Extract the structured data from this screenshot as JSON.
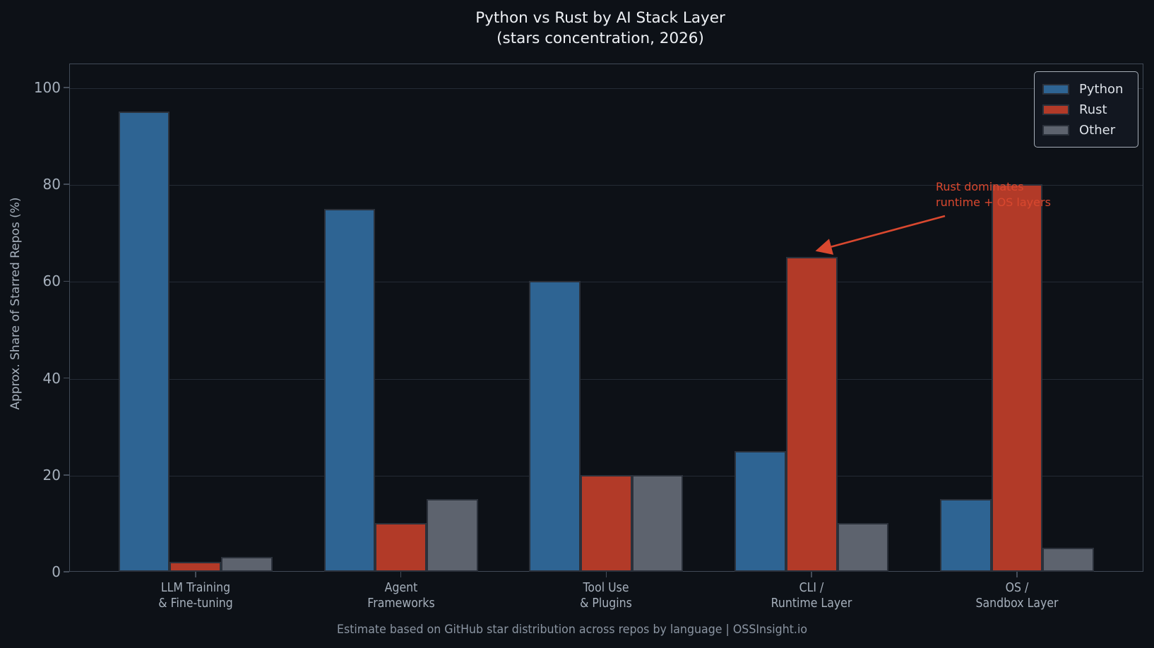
{
  "chart_data": {
    "type": "bar",
    "title": "Python vs Rust by AI Stack Layer",
    "subtitle": "(stars concentration, 2026)",
    "ylabel": "Approx. Share of Starred Repos (%)",
    "footer": "Estimate based on GitHub star distribution across repos by language | OSSInsight.io",
    "categories": [
      "LLM Training\n& Fine-tuning",
      "Agent\nFrameworks",
      "Tool Use\n& Plugins",
      "CLI /\nRuntime Layer",
      "OS /\nSandbox Layer"
    ],
    "series": [
      {
        "name": "Python",
        "color": "#2e6493",
        "values": [
          95,
          75,
          60,
          25,
          15
        ]
      },
      {
        "name": "Rust",
        "color": "#b23a28",
        "values": [
          2,
          10,
          20,
          65,
          80
        ]
      },
      {
        "name": "Other",
        "color": "#5d636e",
        "values": [
          3,
          15,
          20,
          10,
          5
        ]
      }
    ],
    "yticks": [
      0,
      20,
      40,
      60,
      80,
      100
    ],
    "ylim": [
      0,
      105
    ],
    "grid": true,
    "legend_position": "top-right",
    "annotation": {
      "text": "Rust dominates\nruntime + OS layers",
      "color": "#d9482f",
      "target": "Rust bar of CLI / Runtime Layer (65%)"
    },
    "colors": {
      "background": "#0d1117",
      "grid": "#242b35",
      "spine": "#414a57",
      "tick_labels": "#a6b0bc",
      "title": "#eef1f5",
      "footer": "#8b95a2"
    }
  }
}
